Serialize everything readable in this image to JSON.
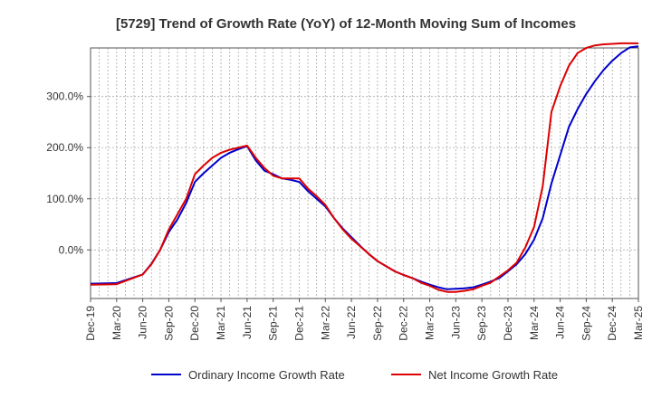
{
  "chart_data": {
    "type": "line",
    "title": "[5729]  Trend of Growth Rate (YoY) of 12-Month Moving Sum of Incomes",
    "xlabel": "",
    "ylabel": "",
    "ylim": [
      -95,
      395
    ],
    "yticks": [
      0,
      100,
      200,
      300
    ],
    "ytick_labels": [
      "0.0%",
      "100.0%",
      "200.0%",
      "300.0%"
    ],
    "x_tick_labels": [
      "Dec-19",
      "Mar-20",
      "Jun-20",
      "Sep-20",
      "Dec-20",
      "Mar-21",
      "Jun-21",
      "Sep-21",
      "Dec-21",
      "Mar-22",
      "Jun-22",
      "Sep-22",
      "Dec-22",
      "Mar-23",
      "Jun-23",
      "Sep-23",
      "Dec-23",
      "Mar-24",
      "Jun-24",
      "Sep-24",
      "Dec-24",
      "Mar-25"
    ],
    "x_month_range": [
      0,
      63
    ],
    "grid": true,
    "legend_position": "bottom-center",
    "series": [
      {
        "name": "Ordinary Income Growth Rate",
        "color": "#0000cc",
        "x": [
          0,
          3,
          6,
          9,
          10,
          11,
          12,
          13,
          14,
          15,
          18,
          21,
          24,
          25,
          26,
          27,
          30,
          33,
          36,
          37,
          38,
          39,
          40,
          42,
          45,
          48,
          51,
          54,
          56,
          57,
          58,
          59,
          60,
          61,
          62,
          63
        ],
        "y": [
          -68,
          -67,
          -48,
          -15,
          -5,
          10,
          25,
          45,
          60,
          80,
          120,
          150,
          180,
          200,
          205,
          195,
          150,
          135,
          90,
          75,
          60,
          45,
          40,
          25,
          5,
          -20,
          -40,
          -60,
          -70,
          -75,
          -85,
          -90,
          -92,
          -75,
          -60,
          -50
        ]
      }
    ],
    "months": [
      0,
      3,
      6,
      7,
      8,
      9,
      10,
      11,
      12,
      13,
      14,
      15,
      16,
      17,
      18,
      19,
      20,
      21,
      22,
      23,
      24,
      25,
      26,
      27,
      28,
      29,
      30,
      31,
      32,
      33,
      34,
      35,
      36,
      37,
      38,
      39,
      40,
      41,
      42,
      43,
      44,
      45,
      46,
      47,
      48,
      49,
      50,
      51,
      52,
      53,
      54,
      55,
      56,
      57,
      58,
      59,
      60,
      61,
      62,
      63
    ],
    "series_values": {
      "ordinary": [
        -66,
        -65,
        -48,
        -27,
        0,
        35,
        60,
        92,
        133,
        150,
        165,
        180,
        190,
        197,
        203,
        175,
        155,
        148,
        140,
        137,
        133,
        115,
        100,
        85,
        62,
        42,
        25,
        8,
        -8,
        -22,
        -32,
        -42,
        -49,
        -55,
        -62,
        -68,
        -73,
        -77,
        -76,
        -75,
        -73,
        -68,
        -62,
        -55,
        -42,
        -28,
        -8,
        20,
        62,
        130,
        185,
        240,
        275,
        305,
        330,
        352,
        370,
        385,
        396,
        398
      ],
      "net": [
        -68,
        -67,
        -48,
        -28,
        0,
        40,
        70,
        100,
        148,
        165,
        180,
        190,
        196,
        200,
        204,
        180,
        160,
        145,
        140,
        140,
        140,
        120,
        105,
        88,
        62,
        40,
        22,
        7,
        -8,
        -22,
        -32,
        -42,
        -49,
        -55,
        -64,
        -70,
        -78,
        -82,
        -82,
        -80,
        -77,
        -70,
        -64,
        -52,
        -40,
        -25,
        5,
        45,
        125,
        270,
        320,
        360,
        385,
        395,
        400,
        402,
        403,
        404,
        404,
        404
      ]
    }
  },
  "legend": {
    "ordinary": "Ordinary Income Growth Rate",
    "net": "Net Income Growth Rate"
  },
  "colors": {
    "ordinary": "#0000cc",
    "net": "#dd0000"
  }
}
